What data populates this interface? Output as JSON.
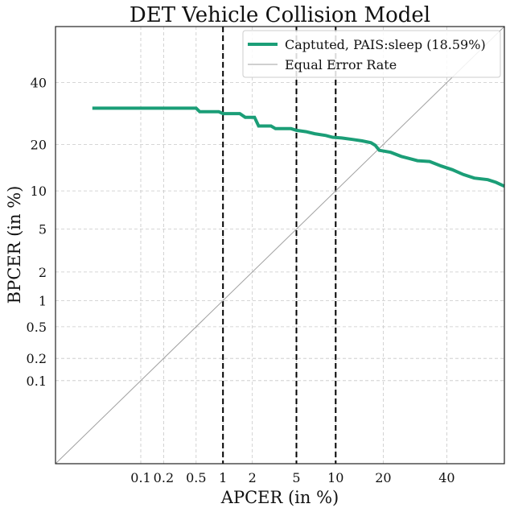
{
  "chart_data": {
    "type": "line",
    "title": "DET Vehicle Collision Model",
    "xlabel": "APCER (in %)",
    "ylabel": "BPCER (in %)",
    "x_scale": "probit",
    "y_scale": "probit",
    "xlim": [
      0.0052,
      61
    ],
    "ylim": [
      0.0052,
      61
    ],
    "x_ticks": [
      0.1,
      0.2,
      0.5,
      1,
      2,
      5,
      10,
      20,
      40
    ],
    "y_ticks": [
      0.1,
      0.2,
      0.5,
      1,
      2,
      5,
      10,
      20,
      40
    ],
    "x_ticklabels": [
      "0.1",
      "0.2",
      "0.5",
      "1",
      "2",
      "5",
      "10",
      "20",
      "40"
    ],
    "y_ticklabels": [
      "0.1",
      "0.2",
      "0.5",
      "1",
      "2",
      "5",
      "10",
      "20",
      "40"
    ],
    "grid": true,
    "legend_position": "top-right",
    "vertical_reference_lines": [
      1,
      5,
      10
    ],
    "series": [
      {
        "name": "Captuted, PAIS:sleep (18.59%)",
        "color": "#1b9e77",
        "style": "step",
        "x": [
          0.02,
          0.5,
          0.55,
          0.9,
          1.0,
          1.5,
          1.7,
          2.1,
          2.3,
          3.0,
          3.3,
          4.5,
          5.0,
          6.0,
          7.0,
          8.5,
          9.5,
          11,
          13,
          15,
          17,
          18,
          19,
          22,
          25,
          30,
          34,
          38,
          42,
          46,
          50,
          55,
          58,
          61
        ],
        "y": [
          31,
          31,
          29.8,
          29.8,
          29.2,
          29.2,
          28.0,
          28.0,
          25.3,
          25.3,
          24.5,
          24.5,
          24.0,
          23.6,
          23.0,
          22.5,
          22.0,
          21.8,
          21.4,
          21.0,
          20.5,
          19.8,
          18.5,
          18.0,
          17.0,
          16.0,
          15.8,
          14.8,
          14.0,
          13.0,
          12.3,
          12.0,
          11.5,
          10.8
        ]
      },
      {
        "name": "Equal Error Rate",
        "color": "#a0a0a0",
        "style": "line",
        "x": [
          0.0052,
          61
        ],
        "y": [
          0.0052,
          61
        ]
      }
    ]
  }
}
